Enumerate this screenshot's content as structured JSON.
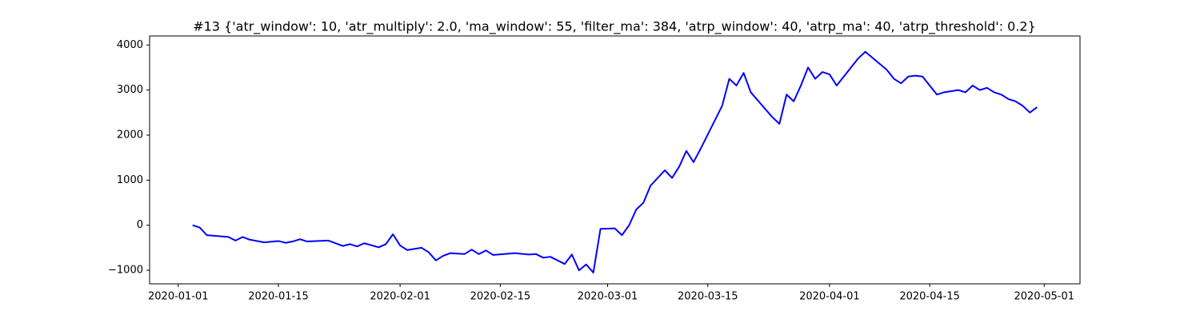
{
  "chart_data": {
    "type": "line",
    "title": "#13 {'atr_window': 10, 'atr_multiply': 2.0, 'ma_window': 55, 'filter_ma': 384, 'atrp_window': 40, 'atrp_ma': 40, 'atrp_threshold': 0.2}",
    "color": "#0000ff",
    "x": [
      "2020-01-03",
      "2020-01-04",
      "2020-01-05",
      "2020-01-08",
      "2020-01-09",
      "2020-01-10",
      "2020-01-11",
      "2020-01-13",
      "2020-01-15",
      "2020-01-16",
      "2020-01-17",
      "2020-01-18",
      "2020-01-19",
      "2020-01-22",
      "2020-01-24",
      "2020-01-25",
      "2020-01-26",
      "2020-01-27",
      "2020-01-29",
      "2020-01-30",
      "2020-01-31",
      "2020-02-01",
      "2020-02-02",
      "2020-02-04",
      "2020-02-05",
      "2020-02-06",
      "2020-02-07",
      "2020-02-08",
      "2020-02-10",
      "2020-02-11",
      "2020-02-12",
      "2020-02-13",
      "2020-02-14",
      "2020-02-17",
      "2020-02-19",
      "2020-02-20",
      "2020-02-21",
      "2020-02-22",
      "2020-02-24",
      "2020-02-25",
      "2020-02-26",
      "2020-02-27",
      "2020-02-28",
      "2020-02-29",
      "2020-03-02",
      "2020-03-03",
      "2020-03-04",
      "2020-03-05",
      "2020-03-06",
      "2020-03-07",
      "2020-03-09",
      "2020-03-10",
      "2020-03-11",
      "2020-03-12",
      "2020-03-13",
      "2020-03-14",
      "2020-03-17",
      "2020-03-18",
      "2020-03-19",
      "2020-03-20",
      "2020-03-21",
      "2020-03-24",
      "2020-03-25",
      "2020-03-26",
      "2020-03-27",
      "2020-03-28",
      "2020-03-29",
      "2020-03-30",
      "2020-03-31",
      "2020-04-01",
      "2020-04-02",
      "2020-04-03",
      "2020-04-05",
      "2020-04-06",
      "2020-04-09",
      "2020-04-10",
      "2020-04-11",
      "2020-04-12",
      "2020-04-13",
      "2020-04-14",
      "2020-04-16",
      "2020-04-17",
      "2020-04-19",
      "2020-04-20",
      "2020-04-21",
      "2020-04-22",
      "2020-04-23",
      "2020-04-24",
      "2020-04-25",
      "2020-04-26",
      "2020-04-27",
      "2020-04-28",
      "2020-04-29",
      "2020-04-30"
    ],
    "values": [
      0,
      -50,
      -220,
      -260,
      -340,
      -260,
      -320,
      -380,
      -350,
      -390,
      -360,
      -310,
      -360,
      -340,
      -460,
      -420,
      -470,
      -400,
      -490,
      -420,
      -200,
      -450,
      -550,
      -500,
      -600,
      -780,
      -680,
      -620,
      -640,
      -540,
      -640,
      -560,
      -660,
      -620,
      -650,
      -640,
      -720,
      -700,
      -860,
      -650,
      -1000,
      -870,
      -1050,
      -80,
      -70,
      -220,
      0,
      350,
      500,
      880,
      1220,
      1050,
      1300,
      1650,
      1400,
      1700,
      2650,
      3250,
      3100,
      3380,
      2950,
      2400,
      2250,
      2900,
      2750,
      3100,
      3500,
      3250,
      3400,
      3350,
      3100,
      3300,
      3700,
      3850,
      3450,
      3250,
      3150,
      3300,
      3320,
      3300,
      2900,
      2950,
      3000,
      2950,
      3100,
      3000,
      3050,
      2950,
      2900,
      2800,
      2750,
      2650,
      2500,
      2620
    ],
    "xlim": [
      "2019-12-28",
      "2020-05-06"
    ],
    "xticks": [
      "2020-01-01",
      "2020-01-15",
      "2020-02-01",
      "2020-02-15",
      "2020-03-01",
      "2020-03-15",
      "2020-04-01",
      "2020-04-15",
      "2020-05-01"
    ],
    "ylim": [
      -1300,
      4200
    ],
    "yticks": [
      {
        "value": -1000,
        "label": "−1000"
      },
      0,
      1000,
      2000,
      3000,
      4000
    ]
  }
}
